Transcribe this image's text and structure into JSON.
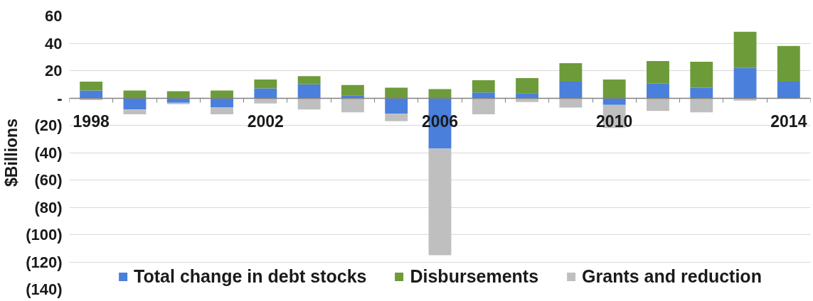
{
  "chart_data": {
    "type": "bar",
    "stacked": true,
    "ylabel": "$Billions",
    "categories": [
      "1998",
      null,
      null,
      null,
      "2002",
      null,
      null,
      null,
      "2006",
      null,
      null,
      null,
      "2010",
      null,
      null,
      null,
      "2014"
    ],
    "series": [
      {
        "name": "Total change in debt stocks",
        "color": "#4a7fdc",
        "values": [
          5.5,
          -8.5,
          -3.5,
          -7,
          7,
          10,
          2,
          -11.5,
          -37,
          4,
          3.5,
          12,
          -5,
          10.5,
          7.5,
          22,
          12
        ]
      },
      {
        "name": "Disbursements",
        "color": "#6e9b3a",
        "values": [
          6.5,
          5.5,
          5,
          5.5,
          6.5,
          6,
          7.5,
          7.5,
          6.5,
          9,
          11,
          13.5,
          13.5,
          16.5,
          19,
          26.5,
          26
        ]
      },
      {
        "name": "Grants and reduction",
        "color": "#bfbfbf",
        "values": [
          -1.5,
          -3.5,
          -1,
          -5,
          -4,
          -8.5,
          -10.5,
          -5.5,
          -78,
          -12,
          -3,
          -7,
          -17,
          -9.5,
          -10.5,
          -2,
          null
        ]
      }
    ],
    "ylim": [
      -140,
      60
    ],
    "yticks": [
      {
        "value": -140,
        "label": "(140)"
      },
      {
        "value": -120,
        "label": "(120)"
      },
      {
        "value": -100,
        "label": "(100)"
      },
      {
        "value": -80,
        "label": "(80)"
      },
      {
        "value": -60,
        "label": "(60)"
      },
      {
        "value": -40,
        "label": "(40)"
      },
      {
        "value": -20,
        "label": "(20)"
      },
      {
        "value": 0,
        "label": "-"
      },
      20,
      40,
      60
    ],
    "grid": "y",
    "legend": "bottom"
  }
}
